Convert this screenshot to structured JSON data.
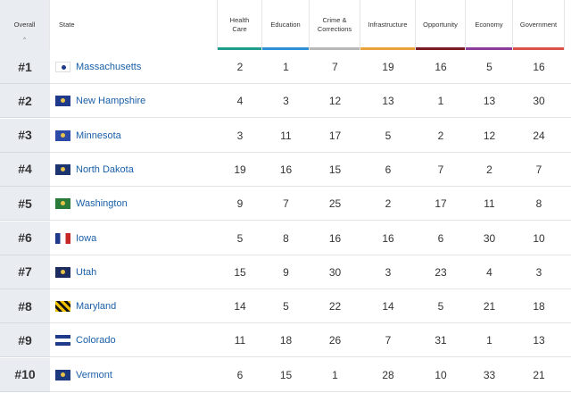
{
  "headers": {
    "overall": "Overall",
    "state": "State",
    "health_care": [
      "Health",
      "Care"
    ],
    "education": "Education",
    "crime": [
      "Crime &",
      "Corrections"
    ],
    "infrastructure": "Infrastructure",
    "opportunity": "Opportunity",
    "economy": "Economy",
    "government": "Government",
    "sort_indicator": "^"
  },
  "category_colors": {
    "health_care": "#1f9c8a",
    "education": "#2d8fd6",
    "crime": "#b8b8b8",
    "infrastructure": "#e8a33c",
    "opportunity": "#7a1a22",
    "economy": "#8a3d9b",
    "government": "#d9534a"
  },
  "rows": [
    {
      "rank": "#1",
      "state": "Massachusetts",
      "flag": "massachusetts-flag",
      "scores": [
        "2",
        "1",
        "7",
        "19",
        "16",
        "5",
        "16"
      ]
    },
    {
      "rank": "#2",
      "state": "New Hampshire",
      "flag": "new-hampshire-flag",
      "scores": [
        "4",
        "3",
        "12",
        "13",
        "1",
        "13",
        "30"
      ]
    },
    {
      "rank": "#3",
      "state": "Minnesota",
      "flag": "minnesota-flag",
      "scores": [
        "3",
        "11",
        "17",
        "5",
        "2",
        "12",
        "24"
      ]
    },
    {
      "rank": "#4",
      "state": "North Dakota",
      "flag": "north-dakota-flag",
      "scores": [
        "19",
        "16",
        "15",
        "6",
        "7",
        "2",
        "7"
      ]
    },
    {
      "rank": "#5",
      "state": "Washington",
      "flag": "washington-flag",
      "scores": [
        "9",
        "7",
        "25",
        "2",
        "17",
        "11",
        "8"
      ]
    },
    {
      "rank": "#6",
      "state": "Iowa",
      "flag": "iowa-flag",
      "scores": [
        "5",
        "8",
        "16",
        "16",
        "6",
        "30",
        "10"
      ]
    },
    {
      "rank": "#7",
      "state": "Utah",
      "flag": "utah-flag",
      "scores": [
        "15",
        "9",
        "30",
        "3",
        "23",
        "4",
        "3"
      ]
    },
    {
      "rank": "#8",
      "state": "Maryland",
      "flag": "maryland-flag",
      "scores": [
        "14",
        "5",
        "22",
        "14",
        "5",
        "21",
        "18"
      ]
    },
    {
      "rank": "#9",
      "state": "Colorado",
      "flag": "colorado-flag",
      "scores": [
        "11",
        "18",
        "26",
        "7",
        "31",
        "1",
        "13"
      ]
    },
    {
      "rank": "#10",
      "state": "Vermont",
      "flag": "vermont-flag",
      "scores": [
        "6",
        "15",
        "1",
        "28",
        "10",
        "33",
        "21"
      ]
    }
  ]
}
